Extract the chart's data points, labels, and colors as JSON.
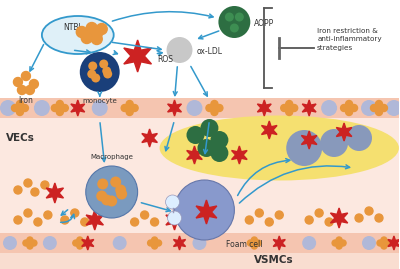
{
  "bg_color": "#ffffff",
  "arrow_color": "#3399cc",
  "skin_pink": "#f5c5b5",
  "skin_light": "#fce8df",
  "plaque_yellow": "#f5e070",
  "vecs_label": "VECs",
  "vsmcs_label": "VSMCs",
  "inhibit_text": "Iron restriction &\nanti-inflammatory\nstrategies",
  "orange": "#e8963c",
  "dark_blue": "#1a3f7a",
  "red_star": "#cc2222",
  "dark_green": "#2d6e42",
  "gray_cell": "#8899bb",
  "blue_cell": "#7a9abf"
}
